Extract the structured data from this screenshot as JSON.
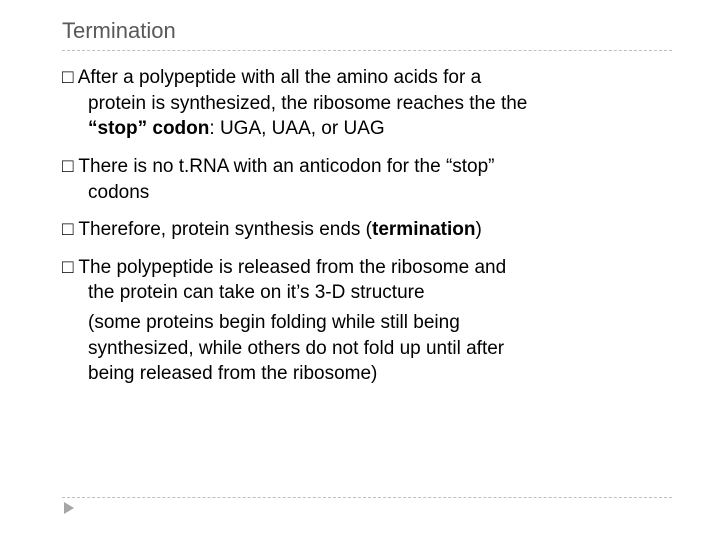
{
  "title": "Termination",
  "p1": {
    "lead": "□ After ",
    "l1rest": "a polypeptide with all the amino acids for a",
    "l2": "protein is synthesized, the ribosome  reaches the the",
    "l3a": "“stop” codon",
    "l3b": ": UGA, UAA, or UAG"
  },
  "p2": {
    "lead": "□ There ",
    "l1rest": "is no t.RNA with an anticodon for the “stop”",
    "l2": "codons"
  },
  "p3": {
    "lead": "□ Therefore, ",
    "rest": "protein synthesis ends (",
    "term": "termination",
    "close": ")"
  },
  "p4": {
    "lead": "□ The ",
    "l1rest": "polypeptide is released from the ribosome and",
    "l2": "the protein can take on it’s 3-D structure",
    "s1": "(some proteins begin folding while still being",
    "s2": "synthesized, while others do not fold up until after",
    "s3": "being released from the ribosome)"
  }
}
